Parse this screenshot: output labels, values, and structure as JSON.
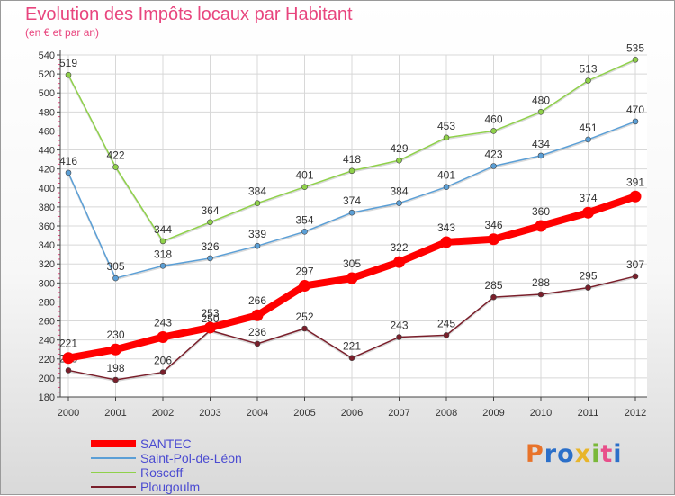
{
  "chart_data": {
    "type": "line",
    "title": "Evolution des Impôts locaux par Habitant",
    "subtitle": "(en € et par an)",
    "x": [
      "2000",
      "2001",
      "2002",
      "2003",
      "2004",
      "2005",
      "2006",
      "2007",
      "2008",
      "2009",
      "2010",
      "2011",
      "2012"
    ],
    "ylim": [
      180,
      540
    ],
    "yticks": [
      180,
      200,
      220,
      240,
      260,
      280,
      300,
      320,
      340,
      360,
      380,
      400,
      420,
      440,
      460,
      480,
      500,
      520,
      540
    ],
    "grid": true,
    "legend": "bottom-left",
    "series": [
      {
        "name": "Plougoulm",
        "color": "#7a1f2b",
        "values": [
          208,
          198,
          206,
          250,
          236,
          252,
          221,
          243,
          245,
          285,
          288,
          295,
          307
        ]
      },
      {
        "name": "Saint-Pol-de-Léon",
        "color": "#5b9fd6",
        "values": [
          416,
          305,
          318,
          326,
          339,
          354,
          374,
          384,
          401,
          423,
          434,
          451,
          470
        ]
      },
      {
        "name": "Roscoff",
        "color": "#8fd14a",
        "values": [
          519,
          422,
          344,
          364,
          384,
          401,
          418,
          429,
          453,
          460,
          480,
          513,
          535
        ]
      },
      {
        "name": "SANTEC",
        "color": "#ff0000",
        "values": [
          221,
          230,
          243,
          253,
          266,
          297,
          305,
          322,
          343,
          346,
          360,
          374,
          391
        ]
      }
    ]
  },
  "legend_items": [
    {
      "name": "SANTEC",
      "color": "#ff0000"
    },
    {
      "name": "Saint-Pol-de-Léon",
      "color": "#5b9fd6"
    },
    {
      "name": "Roscoff",
      "color": "#8fd14a"
    },
    {
      "name": "Plougoulm",
      "color": "#7a1f2b"
    }
  ],
  "logo": {
    "letters": [
      "P",
      "r",
      "o",
      "x",
      "i",
      "t",
      "i"
    ],
    "colors": [
      "#e8732a",
      "#2b6fc9",
      "#2b6fc9",
      "#e8b52a",
      "#7ab83a",
      "#e84f8a",
      "#2b6fc9"
    ]
  }
}
